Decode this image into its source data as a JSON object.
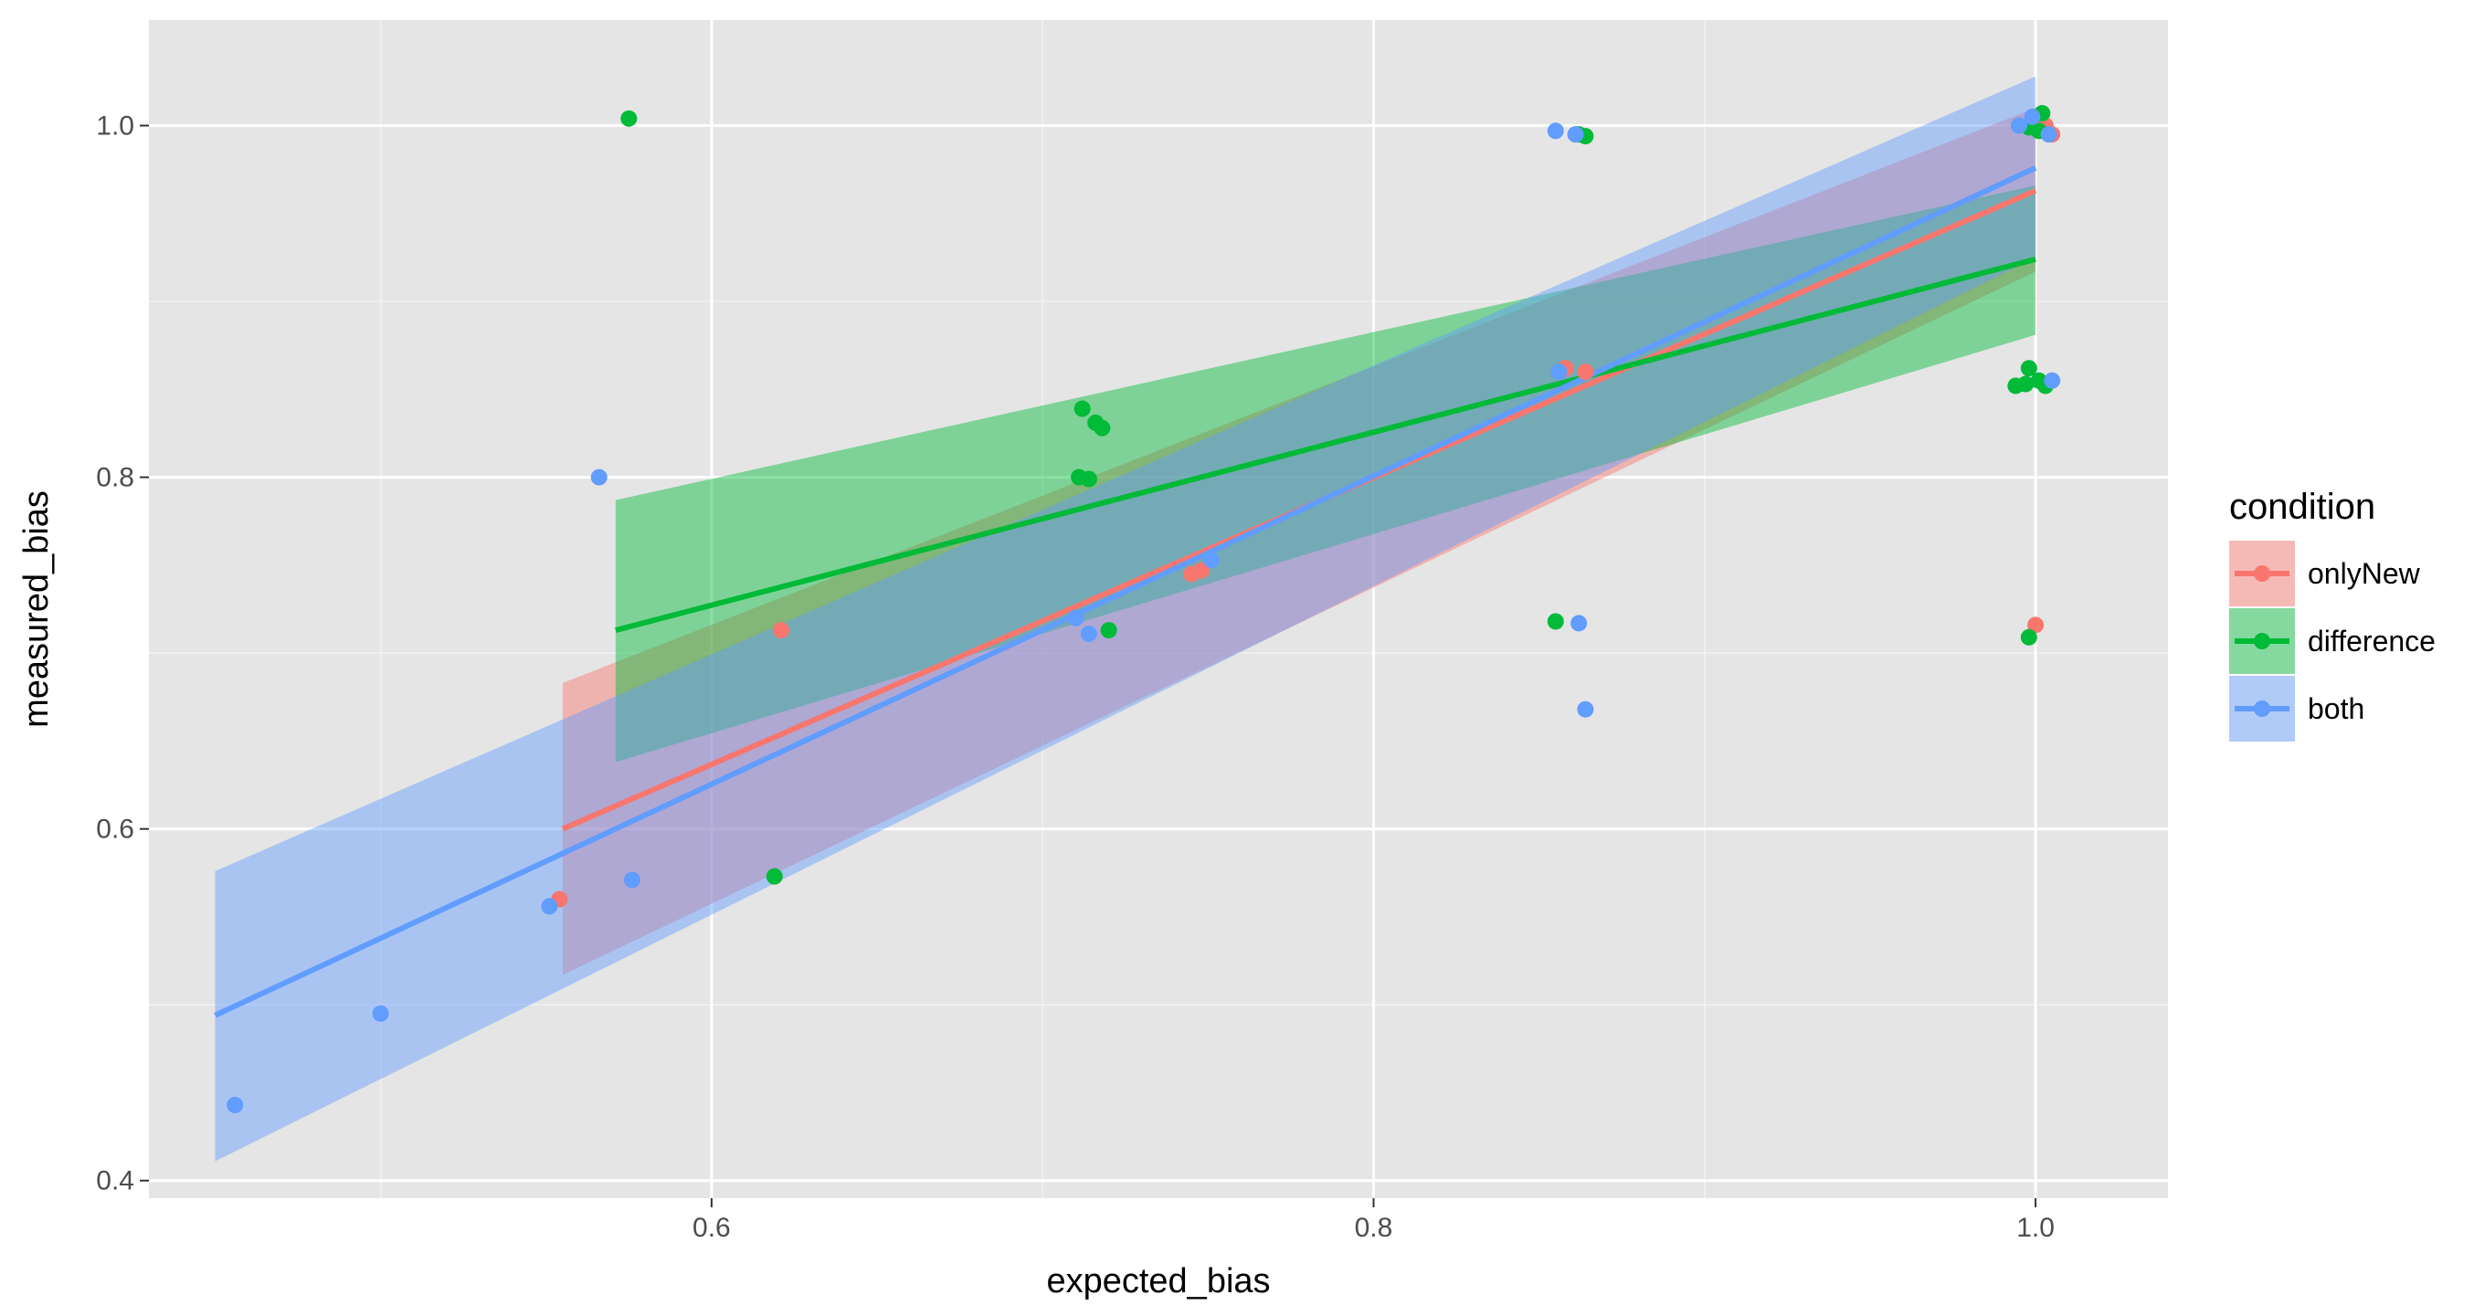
{
  "chart_data": {
    "type": "scatter",
    "xlabel": "expected_bias",
    "ylabel": "measured_bias",
    "xlim": [
      0.43,
      1.04
    ],
    "ylim": [
      0.39,
      1.06
    ],
    "x_ticks": [
      0.6,
      0.8,
      1.0
    ],
    "x_tick_labels": [
      "0.6",
      "0.8",
      "1.0"
    ],
    "y_ticks": [
      0.4,
      0.6,
      0.8,
      1.0
    ],
    "y_tick_labels": [
      "0.4",
      "0.6",
      "0.8",
      "1.0"
    ],
    "grid": true,
    "legend": {
      "title": "condition",
      "position": "right"
    },
    "series": [
      {
        "name": "onlyNew",
        "color": "#F8766D",
        "points": [
          [
            0.554,
            0.56
          ],
          [
            0.621,
            0.713
          ],
          [
            0.745,
            0.745
          ],
          [
            0.748,
            0.747
          ],
          [
            0.858,
            0.862
          ],
          [
            0.864,
            0.86
          ],
          [
            1.0,
            1.005
          ],
          [
            1.003,
            1.0
          ],
          [
            1.005,
            0.995
          ],
          [
            1.0,
            0.716
          ]
        ],
        "fit": {
          "x": [
            0.555,
            1.0
          ],
          "y": [
            0.6,
            0.963
          ]
        },
        "band": {
          "x": [
            0.555,
            1.0
          ],
          "lower": [
            0.517,
            0.917
          ],
          "upper": [
            0.683,
            1.01
          ]
        }
      },
      {
        "name": "difference",
        "color": "#00BA38",
        "points": [
          [
            0.575,
            1.004
          ],
          [
            0.619,
            0.573
          ],
          [
            0.711,
            0.8
          ],
          [
            0.714,
            0.799
          ],
          [
            0.712,
            0.839
          ],
          [
            0.716,
            0.831
          ],
          [
            0.718,
            0.828
          ],
          [
            0.72,
            0.713
          ],
          [
            0.855,
            0.718
          ],
          [
            0.862,
            0.995
          ],
          [
            0.864,
            0.994
          ],
          [
            0.994,
            0.852
          ],
          [
            0.997,
            0.853
          ],
          [
            0.998,
            0.862
          ],
          [
            1.001,
            0.855
          ],
          [
            1.003,
            0.852
          ],
          [
            0.998,
            0.709
          ],
          [
            0.998,
            0.999
          ],
          [
            1.002,
            1.007
          ],
          [
            1.001,
            0.997
          ]
        ],
        "fit": {
          "x": [
            0.571,
            1.0
          ],
          "y": [
            0.713,
            0.924
          ]
        },
        "band": {
          "x": [
            0.571,
            1.0
          ],
          "lower": [
            0.638,
            0.881
          ],
          "upper": [
            0.787,
            0.966
          ]
        }
      },
      {
        "name": "both",
        "color": "#619CFF",
        "points": [
          [
            0.456,
            0.443
          ],
          [
            0.5,
            0.495
          ],
          [
            0.551,
            0.556
          ],
          [
            0.566,
            0.8
          ],
          [
            0.576,
            0.571
          ],
          [
            0.71,
            0.72
          ],
          [
            0.714,
            0.711
          ],
          [
            0.751,
            0.753
          ],
          [
            0.855,
            0.997
          ],
          [
            0.861,
            0.995
          ],
          [
            0.856,
            0.86
          ],
          [
            0.862,
            0.717
          ],
          [
            0.864,
            0.668
          ],
          [
            0.995,
            1.0
          ],
          [
            0.999,
            1.005
          ],
          [
            1.005,
            0.855
          ],
          [
            1.004,
            0.995
          ]
        ],
        "fit": {
          "x": [
            0.45,
            1.0
          ],
          "y": [
            0.494,
            0.976
          ]
        },
        "band": {
          "x": [
            0.45,
            1.0
          ],
          "lower": [
            0.411,
            0.925
          ],
          "upper": [
            0.576,
            1.028
          ]
        }
      }
    ]
  }
}
